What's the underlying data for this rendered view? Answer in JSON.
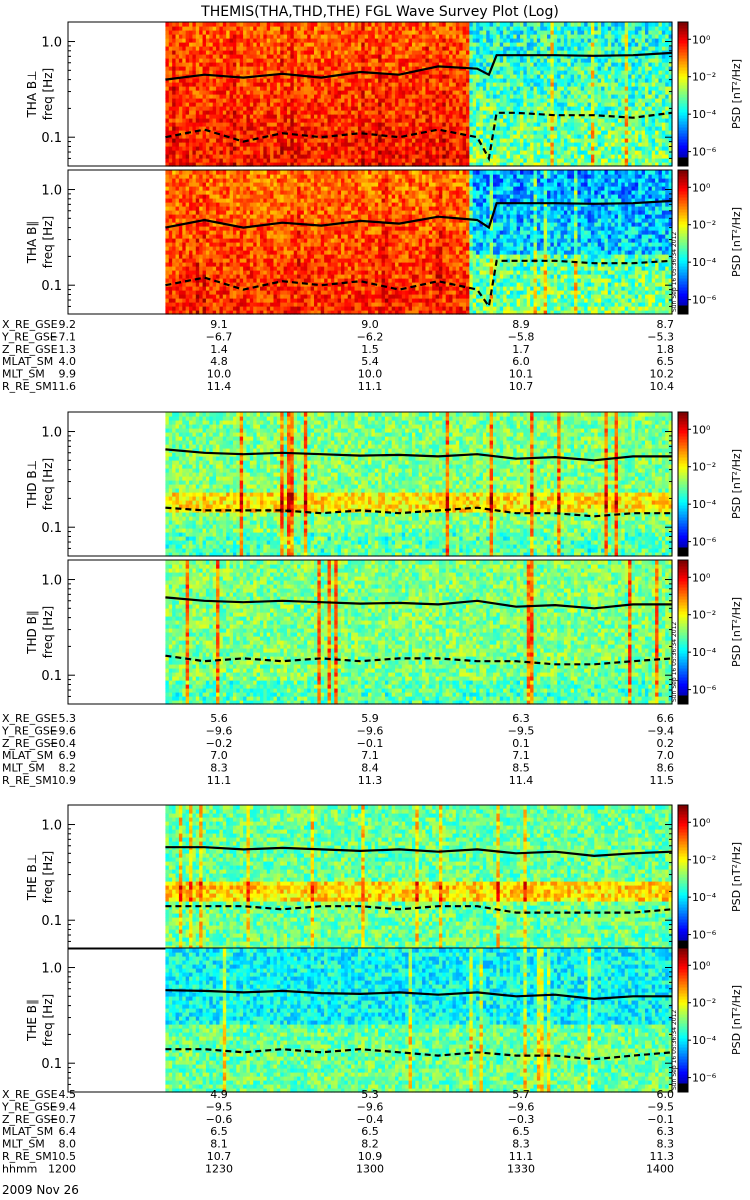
{
  "title": "THEMIS(THA,THD,THE) FGL Wave Survey Plot (Log)",
  "stamp": "Sun Sep 16 05:36:34 2012",
  "colorbar": {
    "label": "PSD [nT²/Hz]",
    "ticks": [
      "10⁰",
      "10⁻²",
      "10⁻⁴",
      "10⁻⁶"
    ]
  },
  "chart_data": [
    {
      "type": "heatmap",
      "ylabel": "THA B⊥",
      "ylabel2": "freq [Hz]",
      "yticks": [
        "1.0",
        "0.1"
      ],
      "ylim": [
        0.05,
        1.6
      ],
      "yscale": "log",
      "xlim": [
        "11:25",
        "14:00"
      ],
      "data_start": "11:50",
      "solid_line": {
        "x": [
          "11:50",
          "12:00",
          "12:10",
          "12:20",
          "12:30",
          "12:40",
          "12:50",
          "13:00",
          "13:10",
          "13:13",
          "13:15",
          "13:20",
          "13:30",
          "13:40",
          "13:50",
          "14:00"
        ],
        "y": [
          0.4,
          0.45,
          0.42,
          0.46,
          0.42,
          0.48,
          0.45,
          0.55,
          0.52,
          0.45,
          0.72,
          0.72,
          0.72,
          0.71,
          0.72,
          0.76
        ]
      },
      "dashed_line": {
        "x": [
          "11:50",
          "12:00",
          "12:10",
          "12:20",
          "12:30",
          "12:40",
          "12:50",
          "13:00",
          "13:10",
          "13:13",
          "13:15",
          "13:20",
          "13:30",
          "13:40",
          "13:50",
          "14:00"
        ],
        "y": [
          0.1,
          0.12,
          0.09,
          0.11,
          0.1,
          0.11,
          0.1,
          0.12,
          0.1,
          0.06,
          0.18,
          0.18,
          0.17,
          0.17,
          0.16,
          0.18
        ]
      }
    },
    {
      "type": "heatmap",
      "ylabel": "THA B∥",
      "ylabel2": "freq [Hz]",
      "yticks": [
        "1.0",
        "0.1"
      ],
      "ylim": [
        0.05,
        1.6
      ],
      "yscale": "log",
      "xlim": [
        "11:25",
        "14:00"
      ],
      "data_start": "11:50",
      "solid_line": {
        "x": [
          "11:50",
          "12:00",
          "12:10",
          "12:20",
          "12:30",
          "12:40",
          "12:50",
          "13:00",
          "13:10",
          "13:13",
          "13:15",
          "13:20",
          "13:30",
          "13:40",
          "13:50",
          "14:00"
        ],
        "y": [
          0.4,
          0.48,
          0.4,
          0.45,
          0.42,
          0.47,
          0.44,
          0.52,
          0.48,
          0.4,
          0.72,
          0.72,
          0.72,
          0.71,
          0.72,
          0.76
        ]
      },
      "dashed_line": {
        "x": [
          "11:50",
          "12:00",
          "12:10",
          "12:20",
          "12:30",
          "12:40",
          "12:50",
          "13:00",
          "13:10",
          "13:13",
          "13:15",
          "13:20",
          "13:30",
          "13:40",
          "13:50",
          "14:00"
        ],
        "y": [
          0.1,
          0.12,
          0.09,
          0.11,
          0.1,
          0.11,
          0.09,
          0.11,
          0.09,
          0.06,
          0.18,
          0.18,
          0.18,
          0.17,
          0.17,
          0.18
        ]
      }
    },
    {
      "type": "heatmap",
      "ylabel": "THD B⊥",
      "ylabel2": "freq [Hz]",
      "yticks": [
        "1.0",
        "0.1"
      ],
      "ylim": [
        0.05,
        1.6
      ],
      "yscale": "log",
      "xlim": [
        "11:25",
        "14:00"
      ],
      "data_start": "11:50",
      "solid_line": {
        "x": [
          "11:50",
          "12:00",
          "12:10",
          "12:20",
          "12:30",
          "12:40",
          "12:50",
          "13:00",
          "13:10",
          "13:20",
          "13:30",
          "13:40",
          "13:50",
          "14:00"
        ],
        "y": [
          0.65,
          0.6,
          0.58,
          0.6,
          0.58,
          0.56,
          0.57,
          0.55,
          0.58,
          0.52,
          0.54,
          0.5,
          0.55,
          0.55
        ]
      },
      "dashed_line": {
        "x": [
          "11:50",
          "12:00",
          "12:10",
          "12:20",
          "12:30",
          "12:40",
          "12:50",
          "13:00",
          "13:10",
          "13:20",
          "13:30",
          "13:40",
          "13:50",
          "14:00"
        ],
        "y": [
          0.16,
          0.15,
          0.15,
          0.15,
          0.14,
          0.15,
          0.14,
          0.15,
          0.16,
          0.14,
          0.14,
          0.13,
          0.14,
          0.14
        ]
      }
    },
    {
      "type": "heatmap",
      "ylabel": "THD B∥",
      "ylabel2": "freq [Hz]",
      "yticks": [
        "1.0",
        "0.1"
      ],
      "ylim": [
        0.05,
        1.6
      ],
      "yscale": "log",
      "xlim": [
        "11:25",
        "14:00"
      ],
      "data_start": "11:50",
      "solid_line": {
        "x": [
          "11:50",
          "12:00",
          "12:10",
          "12:20",
          "12:30",
          "12:40",
          "12:50",
          "13:00",
          "13:10",
          "13:20",
          "13:30",
          "13:40",
          "13:50",
          "14:00"
        ],
        "y": [
          0.65,
          0.6,
          0.58,
          0.6,
          0.58,
          0.56,
          0.57,
          0.55,
          0.6,
          0.52,
          0.54,
          0.5,
          0.55,
          0.55
        ]
      },
      "dashed_line": {
        "x": [
          "11:50",
          "12:00",
          "12:10",
          "12:20",
          "12:30",
          "12:40",
          "12:50",
          "13:00",
          "13:10",
          "13:20",
          "13:30",
          "13:40",
          "13:50",
          "14:00"
        ],
        "y": [
          0.16,
          0.14,
          0.15,
          0.14,
          0.15,
          0.14,
          0.15,
          0.15,
          0.14,
          0.14,
          0.13,
          0.13,
          0.14,
          0.15
        ]
      }
    },
    {
      "type": "heatmap",
      "ylabel": "THE B⊥",
      "ylabel2": "freq [Hz]",
      "yticks": [
        "1.0",
        "0.1"
      ],
      "ylim": [
        0.05,
        1.6
      ],
      "yscale": "log",
      "xlim": [
        "11:25",
        "14:00"
      ],
      "data_start": "11:50",
      "solid_line": {
        "x": [
          "11:50",
          "12:00",
          "12:10",
          "12:20",
          "12:30",
          "12:40",
          "12:50",
          "13:00",
          "13:10",
          "13:20",
          "13:30",
          "13:40",
          "13:50",
          "14:00"
        ],
        "y": [
          0.58,
          0.58,
          0.55,
          0.57,
          0.55,
          0.53,
          0.55,
          0.52,
          0.55,
          0.5,
          0.52,
          0.47,
          0.5,
          0.52
        ]
      },
      "dashed_line": {
        "x": [
          "11:50",
          "12:00",
          "12:10",
          "12:20",
          "12:30",
          "12:40",
          "12:50",
          "13:00",
          "13:10",
          "13:20",
          "13:30",
          "13:40",
          "13:50",
          "14:00"
        ],
        "y": [
          0.14,
          0.14,
          0.14,
          0.13,
          0.14,
          0.14,
          0.13,
          0.14,
          0.14,
          0.12,
          0.12,
          0.12,
          0.12,
          0.13
        ]
      }
    },
    {
      "type": "heatmap",
      "ylabel": "THE B∥",
      "ylabel2": "freq [Hz]",
      "yticks": [
        "1.0",
        "0.1"
      ],
      "ylim": [
        0.05,
        1.6
      ],
      "yscale": "log",
      "xlim": [
        "11:25",
        "14:00"
      ],
      "data_start": "11:50",
      "solid_line": {
        "x": [
          "11:50",
          "12:00",
          "12:10",
          "12:20",
          "12:30",
          "12:40",
          "12:50",
          "13:00",
          "13:10",
          "13:20",
          "13:30",
          "13:40",
          "13:50",
          "14:00"
        ],
        "y": [
          0.58,
          0.57,
          0.55,
          0.57,
          0.54,
          0.53,
          0.55,
          0.52,
          0.55,
          0.5,
          0.52,
          0.47,
          0.5,
          0.5
        ]
      },
      "dashed_line": {
        "x": [
          "11:50",
          "12:00",
          "12:10",
          "12:20",
          "12:30",
          "12:40",
          "12:50",
          "13:00",
          "13:10",
          "13:20",
          "13:30",
          "13:40",
          "13:50",
          "14:00"
        ],
        "y": [
          0.14,
          0.14,
          0.13,
          0.14,
          0.13,
          0.14,
          0.13,
          0.12,
          0.13,
          0.12,
          0.12,
          0.11,
          0.12,
          0.13
        ]
      }
    }
  ],
  "ephemeris": [
    {
      "rows": [
        {
          "label": "X_RE_GSE",
          "values": [
            "9.2",
            "9.1",
            "9.0",
            "8.9",
            "8.7"
          ]
        },
        {
          "label": "Y_RE_GSE",
          "values": [
            "−7.1",
            "−6.7",
            "−6.2",
            "−5.8",
            "−5.3"
          ]
        },
        {
          "label": "Z_RE_GSE",
          "values": [
            "1.3",
            "1.4",
            "1.5",
            "1.7",
            "1.8"
          ]
        },
        {
          "label": "MLAT_SM",
          "values": [
            "4.0",
            "4.8",
            "5.4",
            "6.0",
            "6.5"
          ]
        },
        {
          "label": "MLT_SM",
          "values": [
            "9.9",
            "10.0",
            "10.0",
            "10.1",
            "10.2"
          ]
        },
        {
          "label": "R_RE_SM",
          "values": [
            "11.6",
            "11.4",
            "11.1",
            "10.7",
            "10.4"
          ]
        }
      ]
    },
    {
      "rows": [
        {
          "label": "X_RE_GSE",
          "values": [
            "5.3",
            "5.6",
            "5.9",
            "6.3",
            "6.6"
          ]
        },
        {
          "label": "Y_RE_GSE",
          "values": [
            "−9.6",
            "−9.6",
            "−9.6",
            "−9.5",
            "−9.4"
          ]
        },
        {
          "label": "Z_RE_GSE",
          "values": [
            "−0.4",
            "−0.2",
            "−0.1",
            "0.1",
            "0.2"
          ]
        },
        {
          "label": "MLAT_SM",
          "values": [
            "6.9",
            "7.0",
            "7.1",
            "7.1",
            "7.0"
          ]
        },
        {
          "label": "MLT_SM",
          "values": [
            "8.2",
            "8.3",
            "8.4",
            "8.5",
            "8.6"
          ]
        },
        {
          "label": "R_RE_SM",
          "values": [
            "10.9",
            "11.1",
            "11.3",
            "11.4",
            "11.5"
          ]
        }
      ]
    },
    {
      "rows": [
        {
          "label": "X_RE_GSE",
          "values": [
            "4.5",
            "4.9",
            "5.3",
            "5.7",
            "6.0"
          ]
        },
        {
          "label": "Y_RE_GSE",
          "values": [
            "−9.4",
            "−9.5",
            "−9.6",
            "−9.6",
            "−9.5"
          ]
        },
        {
          "label": "Z_RE_GSE",
          "values": [
            "−0.7",
            "−0.6",
            "−0.4",
            "−0.3",
            "−0.1"
          ]
        },
        {
          "label": "MLAT_SM",
          "values": [
            "6.4",
            "6.5",
            "6.5",
            "6.5",
            "6.3"
          ]
        },
        {
          "label": "MLT_SM",
          "values": [
            "8.0",
            "8.1",
            "8.2",
            "8.3",
            "8.3"
          ]
        },
        {
          "label": "R_RE_SM",
          "values": [
            "10.5",
            "10.7",
            "10.9",
            "11.1",
            "11.3"
          ]
        },
        {
          "label": "hhmm",
          "values": [
            "1200",
            "1230",
            "1300",
            "1330",
            "1400"
          ]
        }
      ]
    }
  ],
  "date_label": "2009 Nov 26"
}
